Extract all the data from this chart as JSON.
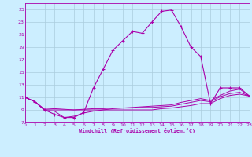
{
  "xlabel": "Windchill (Refroidissement éolien,°C)",
  "background_color": "#cceeff",
  "grid_color": "#aaccdd",
  "line_color": "#aa00aa",
  "xlim": [
    0,
    23
  ],
  "ylim": [
    7,
    26
  ],
  "yticks": [
    7,
    9,
    11,
    13,
    15,
    17,
    19,
    21,
    23,
    25
  ],
  "xticks": [
    0,
    1,
    2,
    3,
    4,
    5,
    6,
    7,
    8,
    9,
    10,
    11,
    12,
    13,
    14,
    15,
    16,
    17,
    18,
    19,
    20,
    21,
    22,
    23
  ],
  "main_line_x": [
    0,
    1,
    2,
    3,
    4,
    5,
    6,
    7,
    8,
    9,
    10,
    11,
    12,
    13,
    14,
    15,
    16,
    17,
    18,
    19,
    20,
    21,
    22,
    23
  ],
  "main_line_y": [
    11.0,
    10.3,
    9.0,
    8.3,
    7.8,
    7.8,
    8.6,
    12.5,
    15.5,
    18.5,
    20.0,
    21.5,
    21.2,
    23.0,
    24.7,
    24.9,
    22.2,
    19.0,
    17.5,
    10.0,
    12.5,
    12.5,
    12.5,
    11.2
  ],
  "secondary_lines": [
    {
      "x": [
        0,
        1,
        2,
        3,
        4,
        5,
        6,
        7,
        8,
        9,
        10,
        11,
        12,
        13,
        14,
        15,
        16,
        17,
        18,
        19,
        20,
        21,
        22,
        23
      ],
      "y": [
        11.0,
        10.3,
        9.0,
        9.0,
        9.0,
        9.0,
        9.0,
        9.0,
        9.0,
        9.0,
        9.0,
        9.0,
        9.0,
        9.0,
        9.2,
        9.3,
        9.5,
        9.7,
        10.0,
        10.0,
        10.8,
        11.3,
        11.5,
        11.2
      ]
    },
    {
      "x": [
        0,
        1,
        2,
        3,
        4,
        5,
        6,
        7,
        8,
        9,
        10,
        11,
        12,
        13,
        14,
        15,
        16,
        17,
        18,
        19,
        20,
        21,
        22,
        23
      ],
      "y": [
        11.0,
        10.3,
        9.1,
        9.2,
        9.1,
        9.0,
        9.1,
        9.2,
        9.2,
        9.3,
        9.3,
        9.3,
        9.4,
        9.4,
        9.5,
        9.6,
        9.9,
        10.2,
        10.5,
        10.3,
        11.1,
        11.6,
        11.8,
        11.2
      ]
    },
    {
      "x": [
        0,
        1,
        2,
        3,
        4,
        5,
        6,
        7,
        8,
        9,
        10,
        11,
        12,
        13,
        14,
        15,
        16,
        17,
        18,
        19,
        20,
        21,
        22,
        23
      ],
      "y": [
        11.0,
        10.3,
        8.9,
        8.8,
        7.8,
        8.0,
        8.5,
        8.8,
        9.0,
        9.2,
        9.3,
        9.4,
        9.5,
        9.6,
        9.7,
        9.8,
        10.2,
        10.5,
        10.8,
        10.5,
        11.3,
        12.0,
        12.3,
        11.2
      ]
    }
  ]
}
